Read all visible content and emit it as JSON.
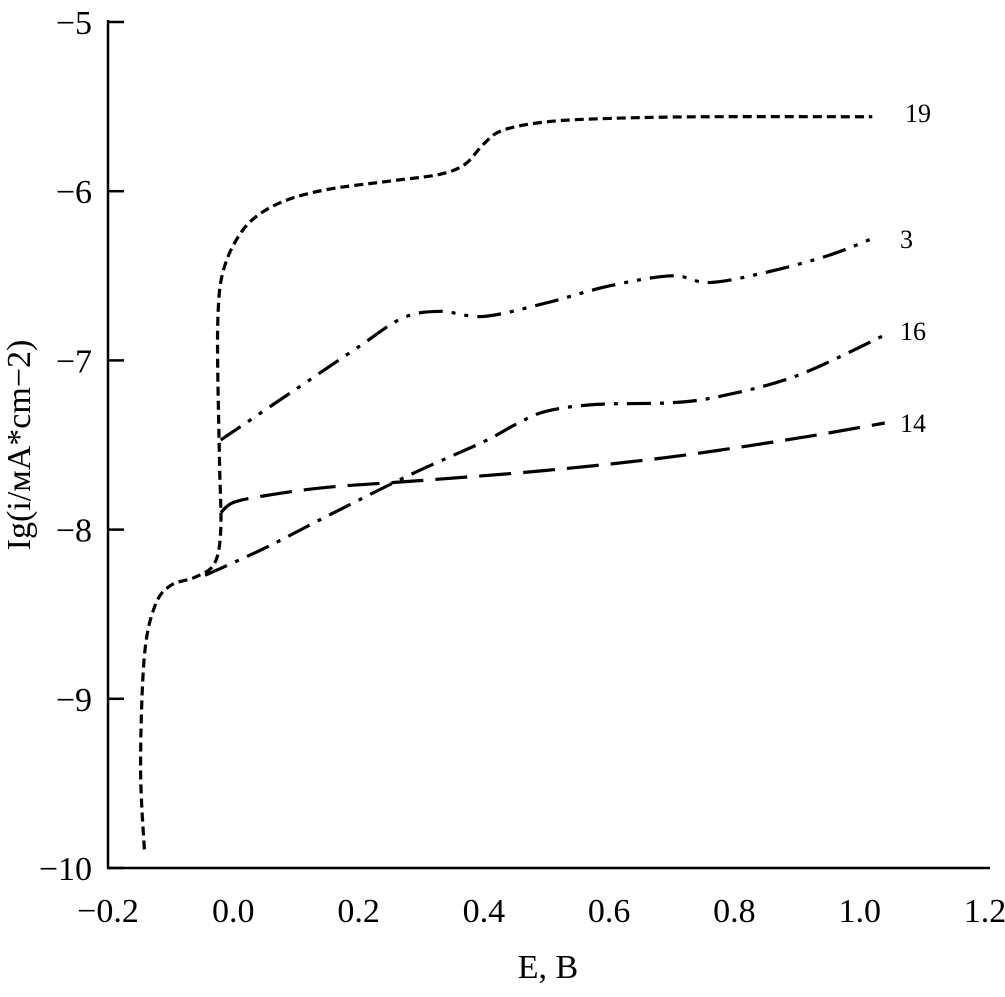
{
  "chart_data": {
    "type": "line",
    "title": "",
    "xlabel": "E, B",
    "ylabel": "Ig(i/мА*cm−2)",
    "xlim": [
      -0.2,
      1.2
    ],
    "ylim": [
      -10,
      -5
    ],
    "xticks": [
      "−0.2",
      "0.0",
      "0.2",
      "0.4",
      "0.6",
      "0.8",
      "1.0",
      "1.2"
    ],
    "xtick_values": [
      -0.2,
      0.0,
      0.2,
      0.4,
      0.6,
      0.8,
      1.0,
      1.2
    ],
    "yticks": [
      "−5",
      "−6",
      "−7",
      "−8",
      "−9",
      "−10"
    ],
    "ytick_values": [
      -5,
      -6,
      -7,
      -8,
      -9,
      -10
    ],
    "grid": false,
    "series": [
      {
        "name": "19",
        "style": "short-dash",
        "x": [
          -0.142,
          -0.148,
          -0.142,
          -0.125,
          -0.1,
          -0.06,
          -0.03,
          -0.02,
          -0.022,
          -0.025,
          -0.024,
          -0.018,
          0.0,
          0.03,
          0.08,
          0.15,
          0.25,
          0.33,
          0.37,
          0.4,
          0.43,
          0.5,
          0.6,
          0.75,
          1.02
        ],
        "y": [
          -9.89,
          -9.4,
          -8.75,
          -8.45,
          -8.33,
          -8.28,
          -8.2,
          -8.0,
          -7.6,
          -7.0,
          -6.7,
          -6.5,
          -6.32,
          -6.17,
          -6.06,
          -5.99,
          -5.94,
          -5.9,
          -5.84,
          -5.72,
          -5.64,
          -5.59,
          -5.57,
          -5.56,
          -5.56
        ]
      },
      {
        "name": "3",
        "style": "dash-dot-dot",
        "x": [
          -0.02,
          0.1,
          0.2,
          0.27,
          0.33,
          0.4,
          0.5,
          0.6,
          0.7,
          0.76,
          0.85,
          0.95,
          1.02
        ],
        "y": [
          -7.47,
          -7.17,
          -6.92,
          -6.75,
          -6.71,
          -6.74,
          -6.66,
          -6.56,
          -6.5,
          -6.54,
          -6.48,
          -6.38,
          -6.28
        ]
      },
      {
        "name": "16",
        "style": "dash-dot",
        "x": [
          -0.045,
          0.05,
          0.15,
          0.28,
          0.4,
          0.45,
          0.5,
          0.58,
          0.7,
          0.78,
          0.9,
          1.04
        ],
        "y": [
          -8.27,
          -8.11,
          -7.92,
          -7.68,
          -7.48,
          -7.38,
          -7.3,
          -7.26,
          -7.25,
          -7.21,
          -7.09,
          -6.85
        ]
      },
      {
        "name": "14",
        "style": "long-dash",
        "x": [
          -0.02,
          0.0,
          0.05,
          0.15,
          0.3,
          0.5,
          0.7,
          0.9,
          1.04
        ],
        "y": [
          -7.9,
          -7.84,
          -7.8,
          -7.75,
          -7.71,
          -7.65,
          -7.57,
          -7.46,
          -7.37
        ]
      }
    ]
  }
}
